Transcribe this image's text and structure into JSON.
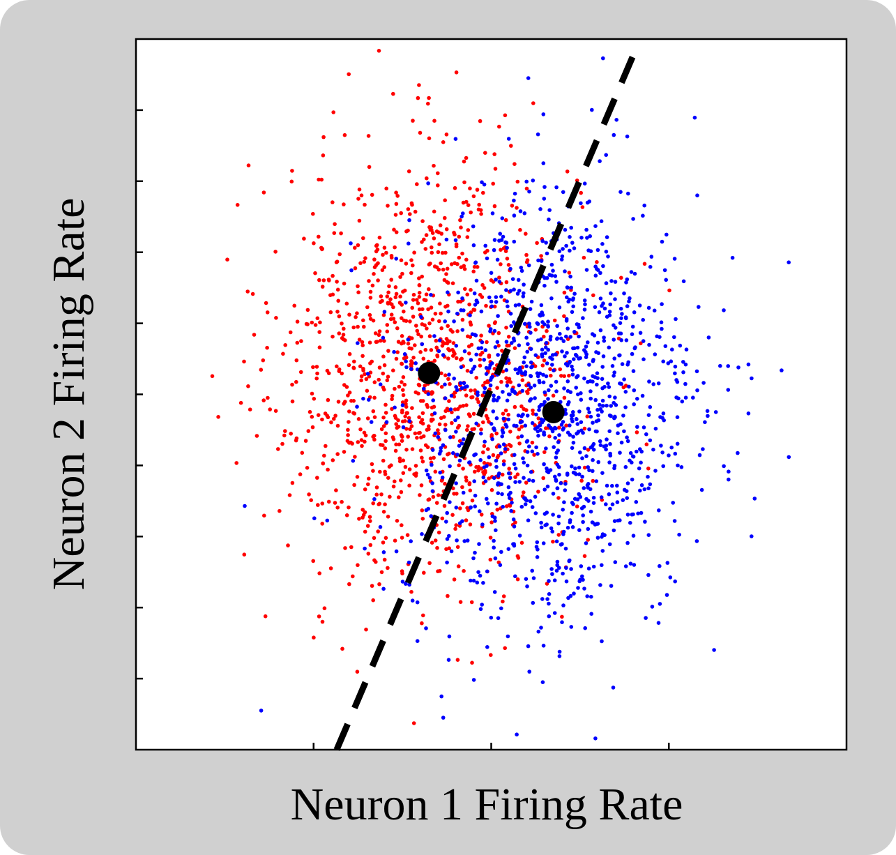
{
  "chart_data": {
    "type": "scatter",
    "title": "",
    "xlabel": "Neuron 1 Firing Rate",
    "ylabel": "Neuron 2 Firing Rate",
    "xlim": [
      0,
      4
    ],
    "ylim": [
      0,
      10
    ],
    "xticks": [
      1,
      2,
      3
    ],
    "yticks": [
      1,
      2,
      3,
      4,
      5,
      6,
      7,
      8,
      9
    ],
    "tick_labels_shown": false,
    "grid": false,
    "legend": "none",
    "series": [
      {
        "color": "#ff0000",
        "distribution": {
          "mean": [
            1.65,
            5.3
          ],
          "sd": [
            0.42,
            1.5
          ],
          "n": 1200
        },
        "outliers": [
          [
            1.68,
            8.85
          ],
          [
            1.27,
            7.8
          ],
          [
            0.93,
            5.75
          ],
          [
            1.73,
            8.55
          ],
          [
            1.05,
            1.8
          ]
        ]
      },
      {
        "color": "#0000ff",
        "distribution": {
          "mean": [
            2.35,
            4.75
          ],
          "sd": [
            0.42,
            1.5
          ],
          "n": 1200
        },
        "outliers": [
          [
            2.69,
            8.65
          ],
          [
            3.16,
            7.8
          ],
          [
            2.29,
            0.95
          ],
          [
            1.73,
            0.45
          ],
          [
            1.72,
            0.75
          ],
          [
            3.05,
            4.0
          ]
        ]
      }
    ],
    "centroids": [
      {
        "x": 1.65,
        "y": 5.3,
        "color": "#000000"
      },
      {
        "x": 2.35,
        "y": 4.75,
        "color": "#000000"
      }
    ],
    "boundary": {
      "style": "dashed",
      "color": "#000000",
      "points": [
        [
          1.13,
          0.0
        ],
        [
          2.83,
          9.95
        ]
      ]
    }
  }
}
